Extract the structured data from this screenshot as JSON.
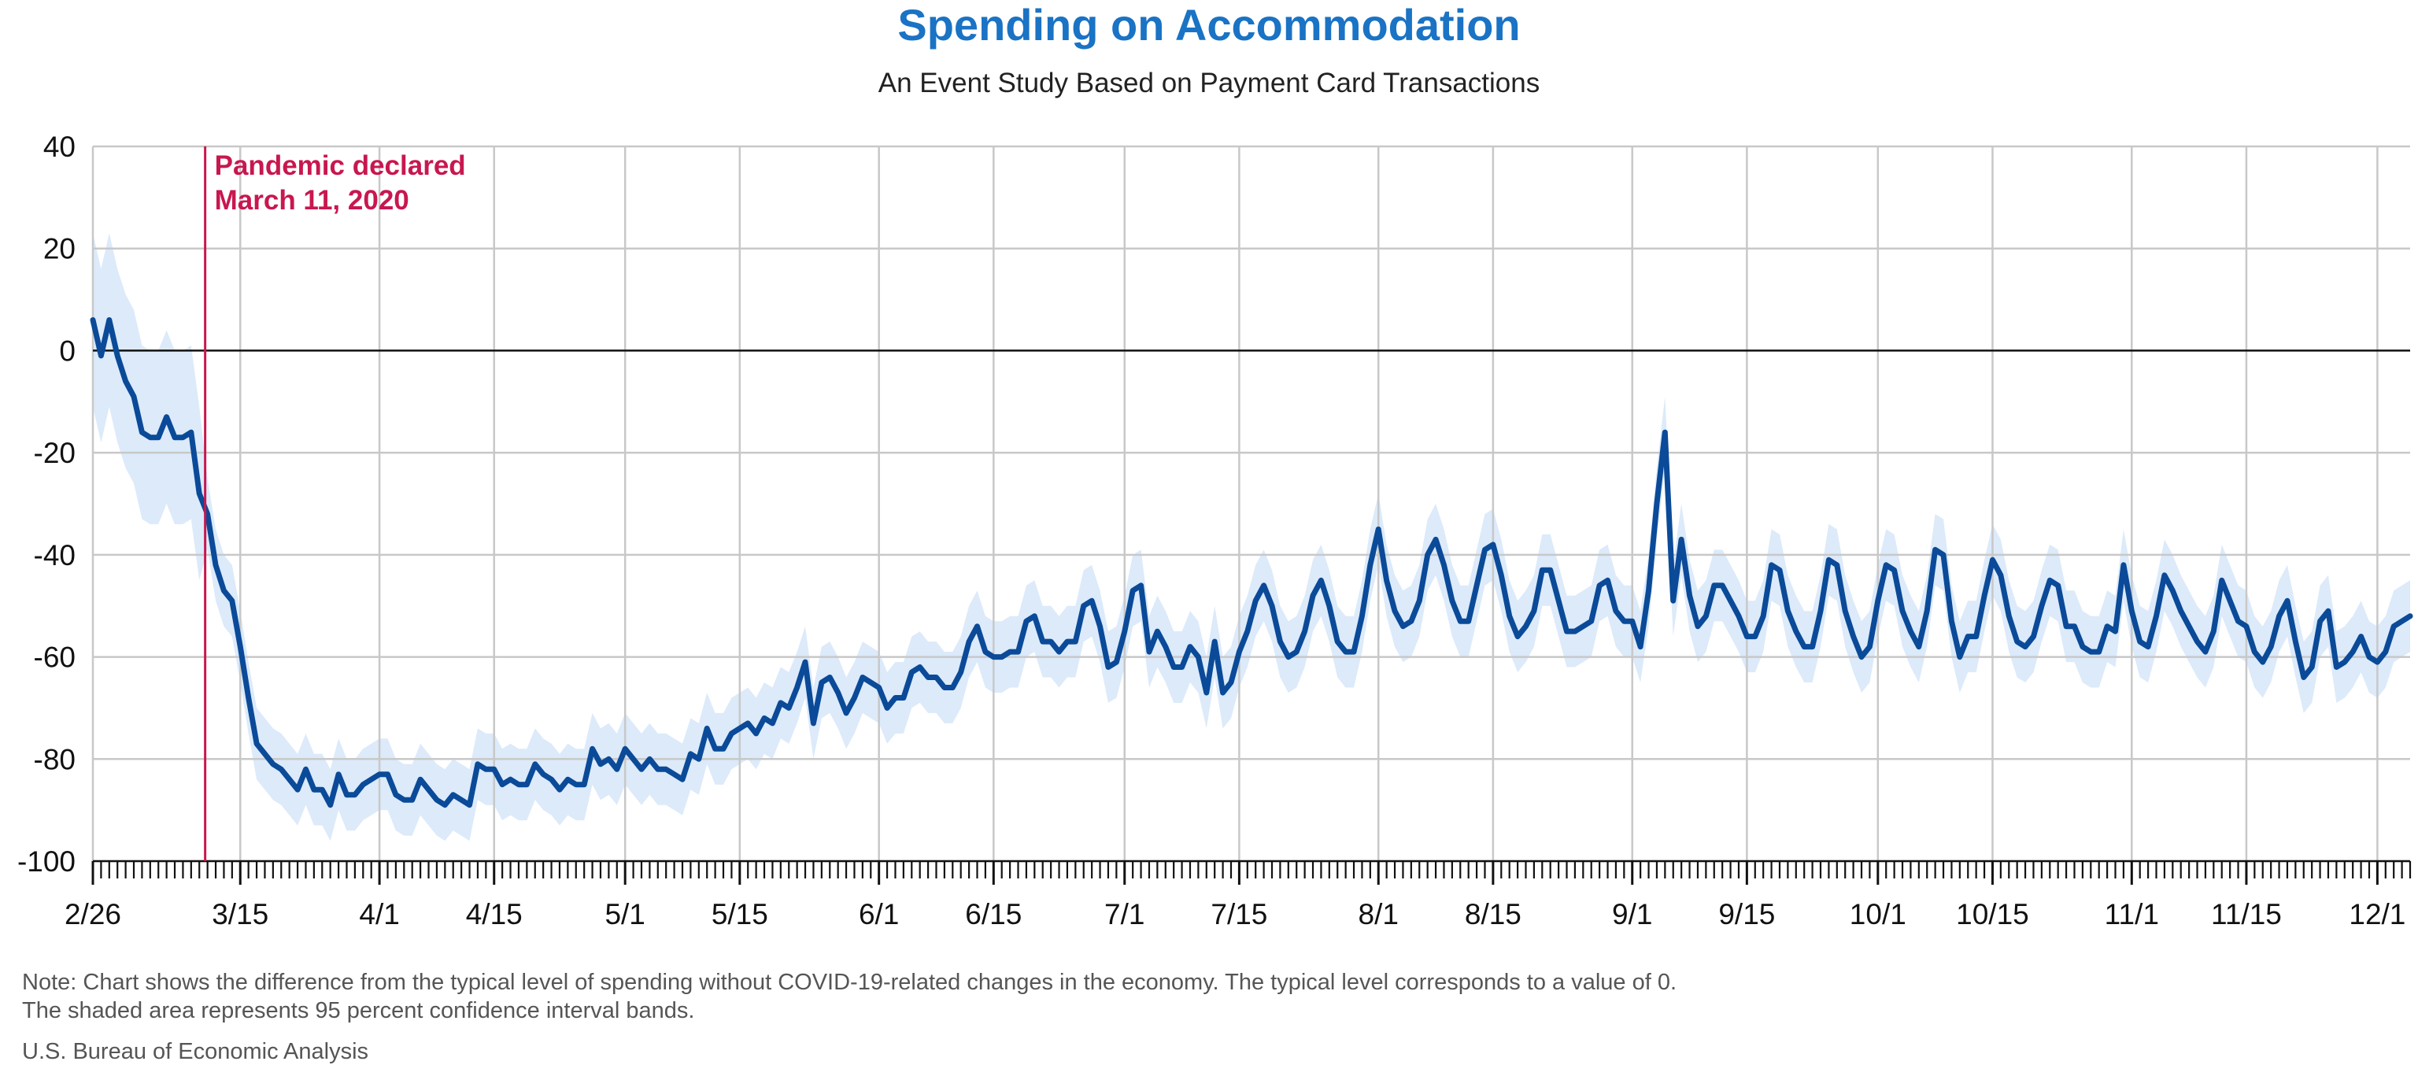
{
  "chart_data": {
    "type": "line",
    "title": "Spending on Accommodation",
    "subtitle": "An Event Study Based on Payment Card Transactions",
    "ylim": [
      -100,
      40
    ],
    "yticks": [
      "40",
      "20",
      "0",
      "-20",
      "-40",
      "-60",
      "-80",
      "-100"
    ],
    "ytick_values": [
      40,
      20,
      0,
      -20,
      -40,
      -60,
      -80,
      -100
    ],
    "xticks": [
      "2/26",
      "3/15",
      "4/1",
      "4/15",
      "5/1",
      "5/15",
      "6/1",
      "6/15",
      "7/1",
      "7/15",
      "8/1",
      "8/15",
      "9/1",
      "9/15",
      "10/1",
      "10/15",
      "11/1",
      "11/15",
      "12/1"
    ],
    "x_start": "2/26",
    "x_end": "12/6",
    "grid": true,
    "series": [
      {
        "color": "#0a4a98",
        "values": [
          6,
          -1,
          6,
          -1,
          -6,
          -9,
          -16,
          -17,
          -17,
          -13,
          -17,
          -17,
          -16,
          -28,
          -32,
          -42,
          -47,
          -49,
          -58,
          -68,
          -77,
          -79,
          -81,
          -82,
          -84,
          -86,
          -82,
          -86,
          -86,
          -89,
          -83,
          -87,
          -87,
          -85,
          -84,
          -83,
          -83,
          -87,
          -88,
          -88,
          -84,
          -86,
          -88,
          -89,
          -87,
          -88,
          -89,
          -81,
          -82,
          -82,
          -85,
          -84,
          -85,
          -85,
          -81,
          -83,
          -84,
          -86,
          -84,
          -85,
          -85,
          -78,
          -81,
          -80,
          -82,
          -78,
          -80,
          -82,
          -80,
          -82,
          -82,
          -83,
          -84,
          -79,
          -80,
          -74,
          -78,
          -78,
          -75,
          -74,
          -73,
          -75,
          -72,
          -73,
          -69,
          -70,
          -66,
          -61,
          -73,
          -65,
          -64,
          -67,
          -71,
          -68,
          -64,
          -65,
          -66,
          -70,
          -68,
          -68,
          -63,
          -62,
          -64,
          -64,
          -66,
          -66,
          -63,
          -57,
          -54,
          -59,
          -60,
          -60,
          -59,
          -59,
          -53,
          -52,
          -57,
          -57,
          -59,
          -57,
          -57,
          -50,
          -49,
          -54,
          -62,
          -61,
          -55,
          -47,
          -46,
          -59,
          -55,
          -58,
          -62,
          -62,
          -58,
          -60,
          -67,
          -57,
          -67,
          -65,
          -59,
          -55,
          -49,
          -46,
          -50,
          -57,
          -60,
          -59,
          -55,
          -48,
          -45,
          -50,
          -57,
          -59,
          -59,
          -52,
          -42,
          -35,
          -45,
          -51,
          -54,
          -53,
          -49,
          -40,
          -37,
          -42,
          -49,
          -53,
          -53,
          -46,
          -39,
          -38,
          -44,
          -52,
          -56,
          -54,
          -51,
          -43,
          -43,
          -49,
          -55,
          -55,
          -54,
          -53,
          -46,
          -45,
          -51,
          -53,
          -53,
          -58,
          -47,
          -30,
          -16,
          -49,
          -37,
          -48,
          -54,
          -52,
          -46,
          -46,
          -49,
          -52,
          -56,
          -56,
          -52,
          -42,
          -43,
          -51,
          -55,
          -58,
          -58,
          -51,
          -41,
          -42,
          -51,
          -56,
          -60,
          -58,
          -49,
          -42,
          -43,
          -51,
          -55,
          -58,
          -51,
          -39,
          -40,
          -53,
          -60,
          -56,
          -56,
          -48,
          -41,
          -44,
          -52,
          -57,
          -58,
          -56,
          -50,
          -45,
          -46,
          -54,
          -54,
          -58,
          -59,
          -59,
          -54,
          -55,
          -42,
          -51,
          -57,
          -58,
          -52,
          -44,
          -47,
          -51,
          -54,
          -57,
          -59,
          -55,
          -45,
          -49,
          -53,
          -54,
          -59,
          -61,
          -58,
          -52,
          -49,
          -57,
          -64,
          -62,
          -53,
          -51,
          -62,
          -61,
          -59,
          -56,
          -60,
          -61,
          -59,
          -54,
          -53,
          -52
        ]
      }
    ],
    "annotations": [
      {
        "line1": "Pandemic declared",
        "line2": "March 11, 2020",
        "x_index": 14,
        "color": "#c8174f"
      }
    ]
  },
  "note": {
    "line1": "Note: Chart shows the difference from the typical level of spending without COVID-19-related changes in the economy. The typical level corresponds to a value of 0.",
    "line2": "The shaded area represents 95 percent confidence interval bands."
  },
  "source": "U.S. Bureau of Economic Analysis",
  "colors": {
    "title": "#1a73c4",
    "line": "#0a4a98",
    "band": "#dceafa",
    "annotation": "#c8174f",
    "grid": "#c8c8c8"
  }
}
